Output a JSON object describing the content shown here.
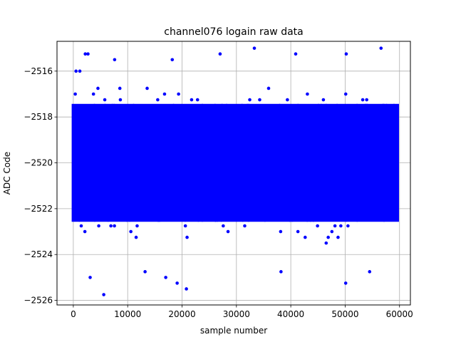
{
  "chart_data": {
    "type": "scatter",
    "title": "channel076 logain raw data",
    "xlabel": "sample number",
    "ylabel": "ADC Code",
    "xlim": [
      -3000,
      62000
    ],
    "ylim": [
      -2526.2,
      -2514.7
    ],
    "x_ticks": [
      0,
      10000,
      20000,
      30000,
      40000,
      50000,
      60000
    ],
    "y_ticks": [
      -2526,
      -2524,
      -2522,
      -2520,
      -2518,
      -2516
    ],
    "grid": true,
    "marker_color": "#0000ff",
    "sample_count": 59600,
    "dense_band": [
      -2522.5,
      -2517.5
    ],
    "quantization_step": 0.25,
    "outliers": [
      {
        "x": 2200,
        "y": -2515.25
      },
      {
        "x": 2700,
        "y": -2515.25
      },
      {
        "x": 7600,
        "y": -2515.5
      },
      {
        "x": 18200,
        "y": -2515.5
      },
      {
        "x": 27000,
        "y": -2515.25
      },
      {
        "x": 33300,
        "y": -2515.0
      },
      {
        "x": 40900,
        "y": -2515.25
      },
      {
        "x": 50200,
        "y": -2515.25
      },
      {
        "x": 56600,
        "y": -2515.0
      },
      {
        "x": 500,
        "y": -2516.0
      },
      {
        "x": 1200,
        "y": -2516.0
      },
      {
        "x": 5600,
        "y": -2525.75
      },
      {
        "x": 3100,
        "y": -2525.0
      },
      {
        "x": 20800,
        "y": -2525.5
      },
      {
        "x": 50100,
        "y": -2525.25
      },
      {
        "x": 19100,
        "y": -2525.25
      },
      {
        "x": 38200,
        "y": -2524.75
      },
      {
        "x": 54500,
        "y": -2524.75
      },
      {
        "x": 17000,
        "y": -2525.0
      },
      {
        "x": 13200,
        "y": -2524.75
      }
    ],
    "random_seed": 76
  }
}
